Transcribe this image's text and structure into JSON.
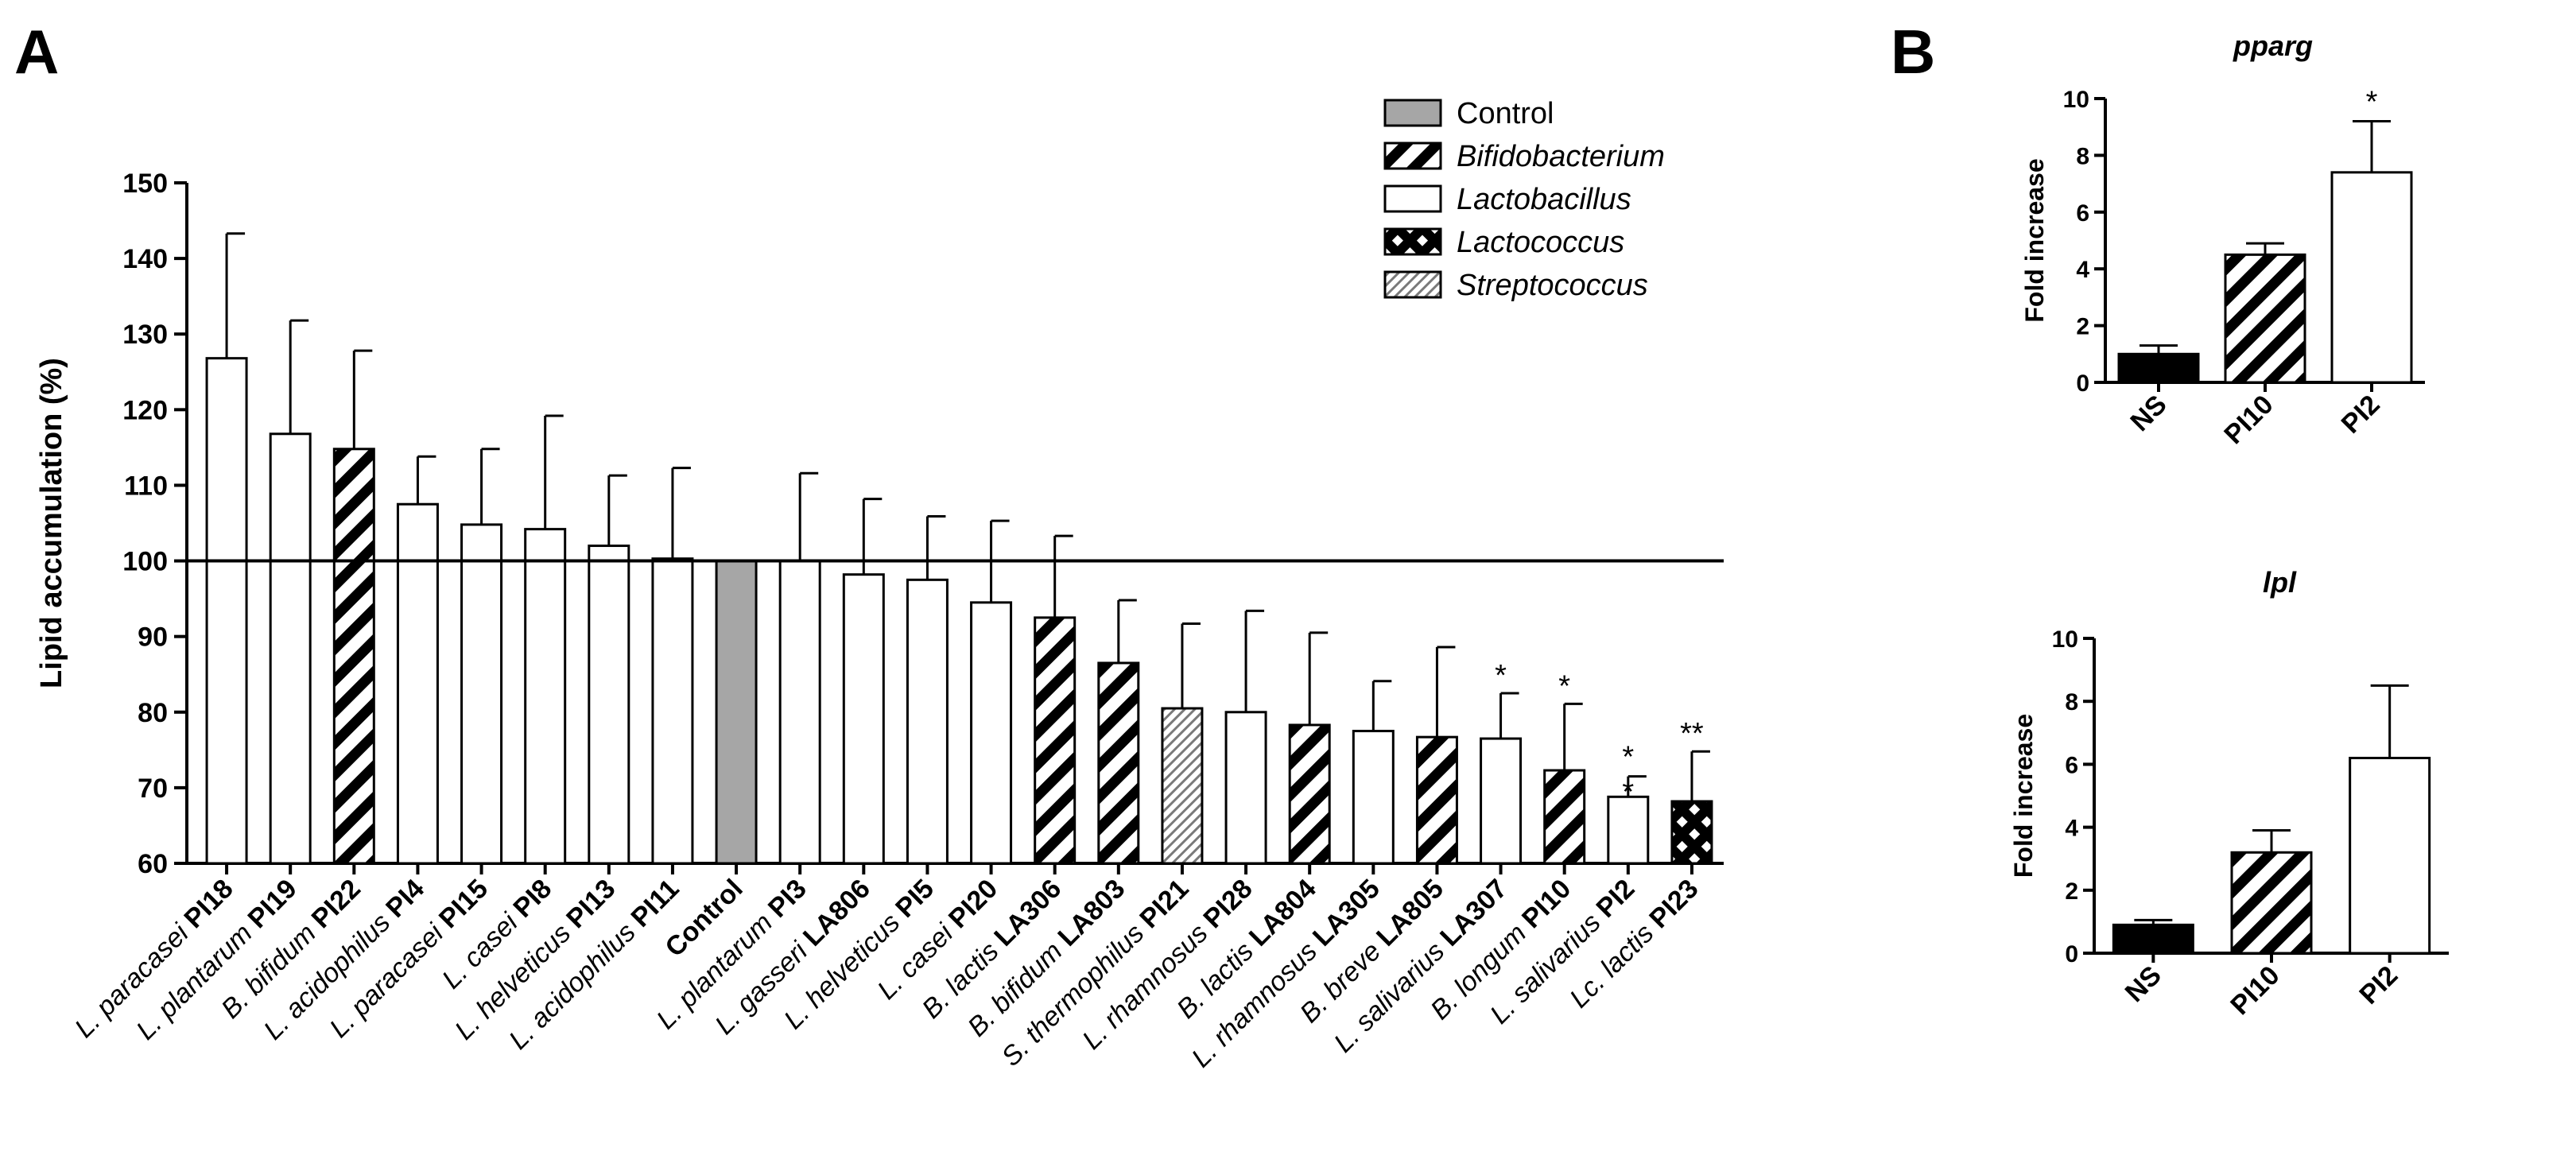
{
  "panels": {
    "a": "A",
    "b": "B"
  },
  "chart_data": [
    {
      "type": "bar",
      "panel": "A",
      "ylabel": "Lipid accumulation (%)",
      "ylim": [
        60,
        150
      ],
      "yticks": [
        60,
        70,
        80,
        90,
        100,
        110,
        120,
        130,
        140,
        150
      ],
      "reference_line": 100,
      "legend": [
        {
          "label": "Control",
          "pattern": "gray",
          "italic": false
        },
        {
          "label": "Bifidobacterium",
          "pattern": "hatch",
          "italic": true
        },
        {
          "label": "Lactobacillus",
          "pattern": "white",
          "italic": true
        },
        {
          "label": "Lactococcus",
          "pattern": "cross",
          "italic": true
        },
        {
          "label": "Streptococcus",
          "pattern": "fine",
          "italic": true
        }
      ],
      "categories": [
        {
          "species": "L. paracasei",
          "strain": "PI18",
          "value": 126.8,
          "error": 16.5,
          "pattern": "white",
          "sig": ""
        },
        {
          "species": "L. plantarum",
          "strain": "PI19",
          "value": 116.8,
          "error": 15.0,
          "pattern": "white",
          "sig": ""
        },
        {
          "species": "B. bifidum",
          "strain": "PI22",
          "value": 114.8,
          "error": 13.0,
          "pattern": "hatch",
          "sig": ""
        },
        {
          "species": "L. acidophilus",
          "strain": "PI4",
          "value": 107.5,
          "error": 6.3,
          "pattern": "white",
          "sig": ""
        },
        {
          "species": "L. paracasei",
          "strain": "PI15",
          "value": 104.8,
          "error": 10.0,
          "pattern": "white",
          "sig": ""
        },
        {
          "species": "L. casei",
          "strain": "PI8",
          "value": 104.2,
          "error": 15.0,
          "pattern": "white",
          "sig": ""
        },
        {
          "species": "L. helveticus",
          "strain": "PI13",
          "value": 102.0,
          "error": 9.3,
          "pattern": "white",
          "sig": ""
        },
        {
          "species": "L. acidophilus",
          "strain": "PI11",
          "value": 100.3,
          "error": 12.0,
          "pattern": "white",
          "sig": ""
        },
        {
          "species": "",
          "strain": "Control",
          "value": 100.0,
          "error": 0,
          "pattern": "gray",
          "sig": ""
        },
        {
          "species": "L. plantarum",
          "strain": "PI3",
          "value": 100.0,
          "error": 11.6,
          "pattern": "white",
          "sig": ""
        },
        {
          "species": "L. gasseri",
          "strain": "LA806",
          "value": 98.2,
          "error": 10.0,
          "pattern": "white",
          "sig": ""
        },
        {
          "species": "L. helveticus",
          "strain": "PI5",
          "value": 97.5,
          "error": 8.4,
          "pattern": "white",
          "sig": ""
        },
        {
          "species": "L. casei",
          "strain": "PI20",
          "value": 94.5,
          "error": 10.8,
          "pattern": "white",
          "sig": ""
        },
        {
          "species": "B. lactis",
          "strain": "LA306",
          "value": 92.5,
          "error": 10.8,
          "pattern": "hatch",
          "sig": ""
        },
        {
          "species": "B. bifidum",
          "strain": "LA803",
          "value": 86.5,
          "error": 8.3,
          "pattern": "hatch",
          "sig": ""
        },
        {
          "species": "S. thermophilus",
          "strain": "PI21",
          "value": 80.5,
          "error": 11.2,
          "pattern": "fine",
          "sig": ""
        },
        {
          "species": "L. rhamnosus",
          "strain": "PI28",
          "value": 80.0,
          "error": 13.4,
          "pattern": "white",
          "sig": ""
        },
        {
          "species": "B. lactis",
          "strain": "LA804",
          "value": 78.3,
          "error": 12.2,
          "pattern": "hatch",
          "sig": ""
        },
        {
          "species": "L. rhamnosus",
          "strain": "LA305",
          "value": 77.5,
          "error": 6.6,
          "pattern": "white",
          "sig": ""
        },
        {
          "species": "B. breve",
          "strain": "LA805",
          "value": 76.7,
          "error": 11.9,
          "pattern": "hatch",
          "sig": ""
        },
        {
          "species": "L. salivarius",
          "strain": "LA307",
          "value": 76.5,
          "error": 6.0,
          "pattern": "white",
          "sig": "*"
        },
        {
          "species": "B. longum",
          "strain": "PI10",
          "value": 72.3,
          "error": 8.8,
          "pattern": "hatch",
          "sig": "*"
        },
        {
          "species": "L. salivarius",
          "strain": "PI2",
          "value": 68.8,
          "error": 2.7,
          "pattern": "white",
          "sig": "**",
          "sig_stacked": true
        },
        {
          "species": "Lc. lactis",
          "strain": "PI23",
          "value": 68.2,
          "error": 6.6,
          "pattern": "cross",
          "sig": "**"
        }
      ]
    },
    {
      "type": "bar",
      "panel": "B",
      "title": "pparg",
      "ylabel": "Fold increase",
      "ylim": [
        0,
        10
      ],
      "yticks": [
        0,
        2,
        4,
        6,
        8,
        10
      ],
      "categories": [
        {
          "label": "NS",
          "value": 1.0,
          "error": 0.3,
          "pattern": "black",
          "sig": ""
        },
        {
          "label": "PI10",
          "value": 4.5,
          "error": 0.4,
          "pattern": "hatch",
          "sig": ""
        },
        {
          "label": "PI2",
          "value": 7.4,
          "error": 1.8,
          "pattern": "white",
          "sig": "*"
        }
      ]
    },
    {
      "type": "bar",
      "panel": "B",
      "title": "lpl",
      "ylabel": "Fold increase",
      "ylim": [
        0,
        10
      ],
      "yticks": [
        0,
        2,
        4,
        6,
        8,
        10
      ],
      "categories": [
        {
          "label": "NS",
          "value": 0.9,
          "error": 0.15,
          "pattern": "black",
          "sig": ""
        },
        {
          "label": "PI10",
          "value": 3.2,
          "error": 0.7,
          "pattern": "hatch",
          "sig": ""
        },
        {
          "label": "PI2",
          "value": 6.2,
          "error": 2.3,
          "pattern": "white",
          "sig": ""
        }
      ]
    }
  ]
}
